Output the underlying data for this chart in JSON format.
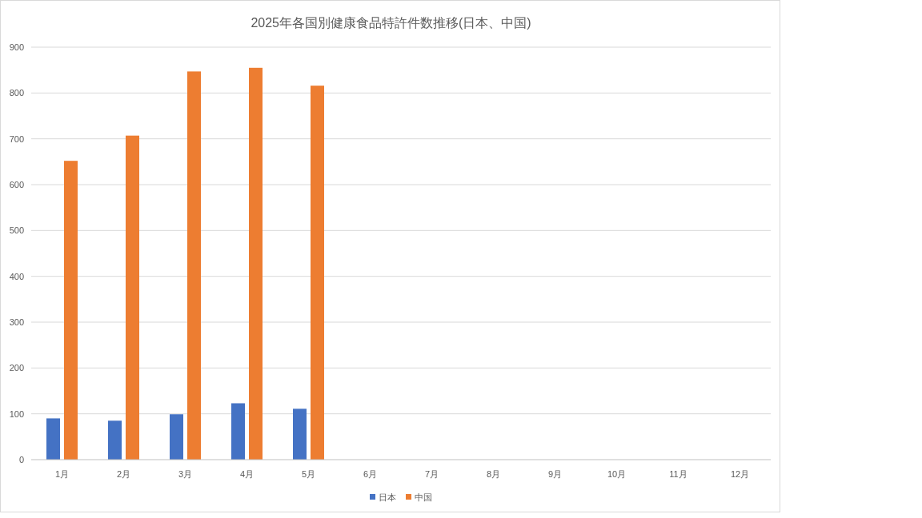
{
  "chart_data": {
    "type": "bar",
    "title": "2025年各国別健康食品特許件数推移(日本、中国)",
    "categories": [
      "1月",
      "2月",
      "3月",
      "4月",
      "5月",
      "6月",
      "7月",
      "8月",
      "9月",
      "10月",
      "11月",
      "12月"
    ],
    "series": [
      {
        "name": "日本",
        "color": "#4472c4",
        "values": [
          90,
          85,
          99,
          123,
          111,
          null,
          null,
          null,
          null,
          null,
          null,
          null
        ]
      },
      {
        "name": "中国",
        "color": "#ed7d31",
        "values": [
          652,
          707,
          847,
          855,
          816,
          null,
          null,
          null,
          null,
          null,
          null,
          null
        ]
      }
    ],
    "ylim": [
      0,
      900
    ],
    "yticks": [
      0,
      100,
      200,
      300,
      400,
      500,
      600,
      700,
      800,
      900
    ],
    "grid": "y",
    "legend": "bottom"
  }
}
